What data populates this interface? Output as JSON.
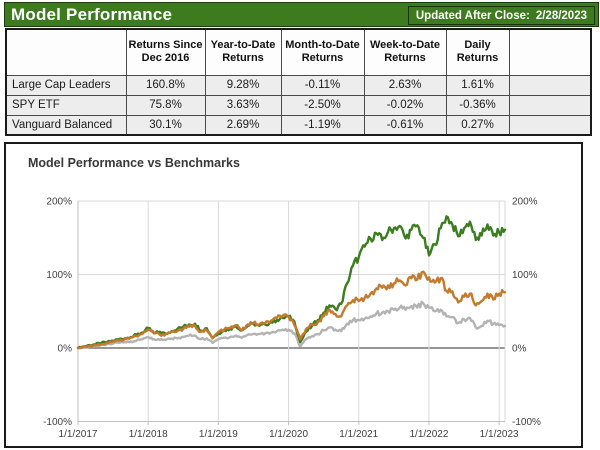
{
  "header": {
    "title": "Model Performance",
    "updated_label": "Updated After Close:",
    "updated_date": "2/28/2023"
  },
  "table": {
    "columns": [
      "",
      "Returns Since Dec 2016",
      "Year-to-Date Returns",
      "Month-to-Date Returns",
      "Week-to-Date Returns",
      "Daily Returns",
      ""
    ],
    "rows": [
      {
        "label": "Large Cap Leaders",
        "values": [
          "160.8%",
          "9.28%",
          "-0.11%",
          "2.63%",
          "1.61%"
        ]
      },
      {
        "label": "SPY ETF",
        "values": [
          "75.8%",
          "3.63%",
          "-2.50%",
          "-0.02%",
          "-0.36%"
        ]
      },
      {
        "label": "Vanguard Balanced",
        "values": [
          "30.1%",
          "2.69%",
          "-1.19%",
          "-0.61%",
          "0.27%"
        ]
      }
    ]
  },
  "chart_data": {
    "type": "line",
    "title": "Model Performance vs Benchmarks",
    "xlabel": "",
    "ylabel": "",
    "ylim": [
      -100,
      200
    ],
    "grid": true,
    "legend": "none",
    "y_ticks": [
      200,
      100,
      0,
      -100
    ],
    "y_tick_labels": [
      "200%",
      "100%",
      "0%",
      "-100%"
    ],
    "x_tick_labels": [
      "1/1/2017",
      "1/1/2018",
      "1/1/2019",
      "1/1/2020",
      "1/1/2021",
      "1/1/2022",
      "1/1/2023"
    ],
    "x_unit": "months since Jan 2017, data ends 2/28/2023",
    "colors": {
      "axis_text": "#404040",
      "grid": "#d9d9d9",
      "zero_line": "#595959",
      "axis_line": "#bfbfbf"
    },
    "series": [
      {
        "name": "Large Cap Leaders",
        "color": "#3C7D1F",
        "values": [
          0,
          2,
          4,
          5,
          7,
          8,
          10,
          12,
          13,
          15,
          18,
          21,
          27,
          20,
          22,
          19,
          23,
          26,
          29,
          32,
          33,
          24,
          27,
          14,
          20,
          24,
          26,
          30,
          24,
          30,
          33,
          30,
          32,
          35,
          38,
          41,
          43,
          36,
          8,
          22,
          30,
          38,
          48,
          58,
          53,
          60,
          88,
          112,
          124,
          138,
          149,
          156,
          147,
          158,
          163,
          166,
          149,
          161,
          167,
          150,
          126,
          141,
          163,
          179,
          168,
          152,
          163,
          172,
          147,
          153,
          168,
          153,
          157,
          160.8
        ]
      },
      {
        "name": "SPY ETF",
        "color": "#C47A2C",
        "values": [
          0,
          2,
          3,
          4,
          5,
          7,
          9,
          10,
          12,
          14,
          16,
          19,
          25,
          21,
          18,
          19,
          22,
          23,
          26,
          29,
          30,
          22,
          24,
          13,
          22,
          25,
          27,
          31,
          24,
          32,
          34,
          32,
          34,
          37,
          41,
          44,
          43,
          31,
          12,
          26,
          32,
          35,
          43,
          52,
          46,
          43,
          58,
          65,
          64,
          68,
          74,
          81,
          82,
          85,
          88,
          92,
          85,
          95,
          93,
          104,
          96,
          89,
          95,
          78,
          77,
          62,
          70,
          74,
          58,
          64,
          74,
          66,
          74,
          75.8
        ]
      },
      {
        "name": "Vanguard Balanced",
        "color": "#B3B3B3",
        "values": [
          0,
          1,
          2,
          3,
          4,
          5,
          6,
          7,
          8,
          9,
          10,
          12,
          15,
          12,
          11,
          11,
          13,
          13,
          15,
          17,
          17,
          12,
          13,
          7,
          12,
          14,
          15,
          17,
          14,
          18,
          19,
          19,
          20,
          21,
          23,
          25,
          25,
          20,
          2,
          12,
          16,
          19,
          24,
          28,
          25,
          23,
          33,
          38,
          38,
          40,
          43,
          47,
          48,
          50,
          52,
          55,
          52,
          57,
          55,
          61,
          55,
          50,
          52,
          43,
          42,
          34,
          39,
          41,
          28,
          30,
          37,
          33,
          31,
          30.1
        ]
      }
    ]
  }
}
